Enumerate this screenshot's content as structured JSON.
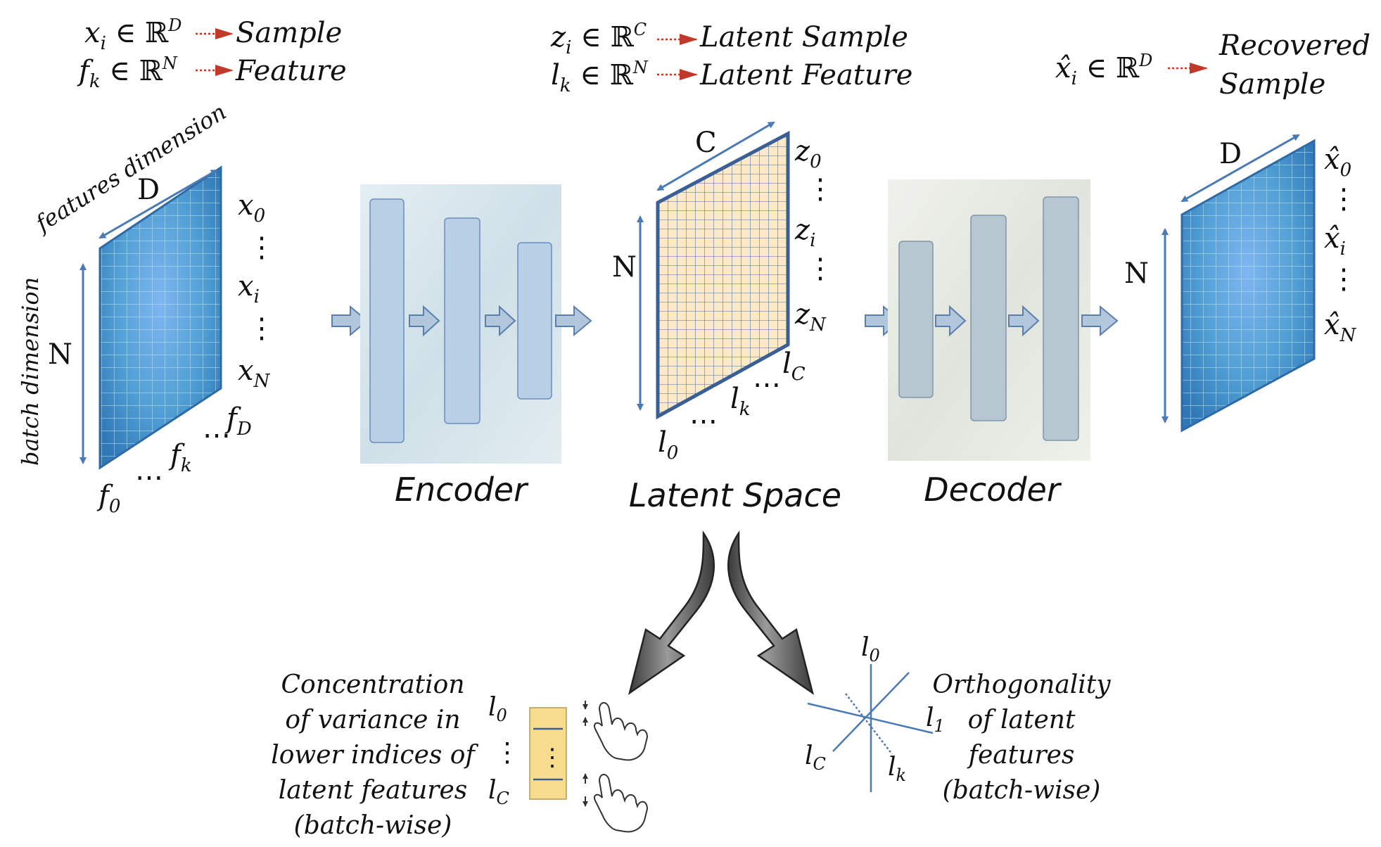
{
  "legend_left": {
    "line1": {
      "symbol": "x",
      "sub": "i",
      "rel": " ∈ ℝ",
      "sup": "D",
      "label": "Sample"
    },
    "line2": {
      "symbol": "f",
      "sub": "k",
      "rel": " ∈ ℝ",
      "sup": "N",
      "label": "Feature"
    }
  },
  "legend_mid": {
    "line1": {
      "symbol": "z",
      "sub": "i",
      "rel": " ∈ ℝ",
      "sup": "C",
      "label": "Latent Sample"
    },
    "line2": {
      "symbol": "l",
      "sub": "k",
      "rel": " ∈ ℝ",
      "sup": "N",
      "label": "Latent Feature"
    }
  },
  "legend_right": {
    "line1": {
      "symbol": "x̂",
      "sub": "i",
      "rel": " ∈ ℝ",
      "sup": "D",
      "label": "Recovered"
    },
    "line2": {
      "label": "Sample"
    }
  },
  "input_matrix": {
    "features_dim_label": "features dimension",
    "batch_dim_label": "batch dimension",
    "D": "D",
    "N": "N",
    "rows": [
      {
        "sym": "x",
        "sub": "0"
      },
      {
        "sym": "⋮"
      },
      {
        "sym": "x",
        "sub": "i"
      },
      {
        "sym": "⋮"
      },
      {
        "sym": "x",
        "sub": "N"
      }
    ],
    "cols": [
      {
        "sym": "f",
        "sub": "0"
      },
      {
        "sym": "⋯"
      },
      {
        "sym": "f",
        "sub": "k"
      },
      {
        "sym": "⋯"
      },
      {
        "sym": "f",
        "sub": "D"
      }
    ]
  },
  "latent_matrix": {
    "C": "C",
    "N": "N",
    "rows": [
      {
        "sym": "z",
        "sub": "0"
      },
      {
        "sym": "⋮"
      },
      {
        "sym": "z",
        "sub": "i"
      },
      {
        "sym": "⋮"
      },
      {
        "sym": "z",
        "sub": "N"
      }
    ],
    "cols": [
      {
        "sym": "l",
        "sub": "0"
      },
      {
        "sym": "⋯"
      },
      {
        "sym": "l",
        "sub": "k"
      },
      {
        "sym": "⋯"
      },
      {
        "sym": "l",
        "sub": "C"
      }
    ]
  },
  "output_matrix": {
    "D": "D",
    "N": "N",
    "rows": [
      {
        "sym": "x̂",
        "sub": "0"
      },
      {
        "sym": "⋮"
      },
      {
        "sym": "x̂",
        "sub": "i"
      },
      {
        "sym": "⋮"
      },
      {
        "sym": "x̂",
        "sub": "N"
      }
    ]
  },
  "labels": {
    "encoder": "Encoder",
    "latent_space": "Latent Space",
    "decoder": "Decoder"
  },
  "concentration": {
    "text_lines": [
      "Concentration",
      "of variance in",
      "lower indices of",
      "latent features",
      "(batch-wise)"
    ],
    "l0": {
      "sym": "l",
      "sub": "0"
    },
    "dots": "⋮",
    "lc": {
      "sym": "l",
      "sub": "C"
    }
  },
  "orthogonality": {
    "text_lines": [
      "Orthogonality",
      "of latent",
      "features",
      "(batch-wise)"
    ],
    "l0": {
      "sym": "l",
      "sub": "0"
    },
    "l1": {
      "sym": "l",
      "sub": "1"
    },
    "lc": {
      "sym": "l",
      "sub": "C"
    },
    "lk": {
      "sym": "l",
      "sub": "k"
    }
  },
  "colors": {
    "accent_blue": "#4a7ab5",
    "arrow_red": "#c0392b",
    "latent_fill": "#fbe9c8",
    "encoder_bg": "#d3e2ea",
    "decoder_bg": "#e6e8e2",
    "concentration_fill": "#f8dc8e"
  }
}
